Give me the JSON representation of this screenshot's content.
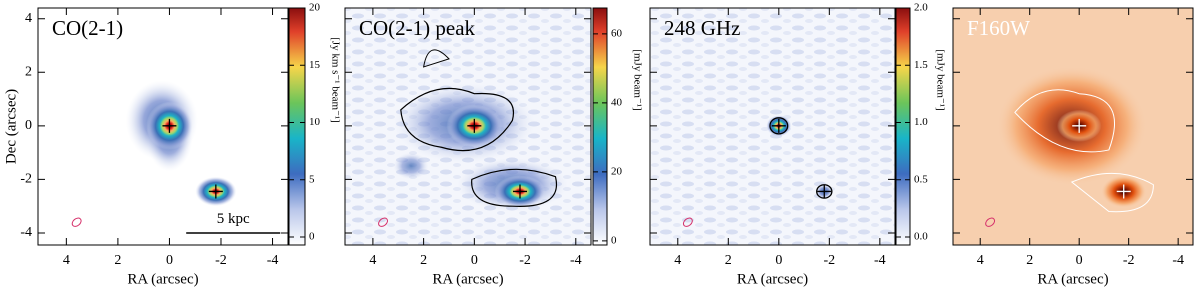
{
  "chart_data": [
    {
      "type": "image",
      "title": "CO(2-1)",
      "xlabel": "RA (arcsec)",
      "ylabel": "Dec (arcsec)",
      "xlim": [
        5.1,
        -4.6
      ],
      "xticks": [
        4,
        2,
        0,
        -2,
        -4
      ],
      "ylim": [
        -4.45,
        4.4
      ],
      "yticks": [
        -4,
        -2,
        0,
        2,
        4
      ],
      "x": [
        0,
        -1.8
      ],
      "y": [
        0,
        -2.45
      ],
      "marker_color": "#000000",
      "scalebar": "5 kpc",
      "colorbar": {
        "label": "[Jy km s⁻¹ beam⁻¹]",
        "lim": [
          -0.7,
          20
        ],
        "ticks": [
          0,
          5,
          10,
          15,
          20
        ]
      }
    },
    {
      "type": "image",
      "title": "CO(2-1) peak",
      "xlabel": "RA (arcsec)",
      "xlim": [
        5.1,
        -4.6
      ],
      "xticks": [
        4,
        2,
        0,
        -2,
        -4
      ],
      "ylim": [
        -4.45,
        4.4
      ],
      "yticks": [
        -4,
        -2,
        0,
        2,
        4
      ],
      "x": [
        0,
        -1.8
      ],
      "y": [
        0,
        -2.45
      ],
      "marker_color": "#000000",
      "colorbar": {
        "label": "[mJy beam⁻¹]",
        "lim": [
          -1.2,
          67.5
        ],
        "ticks": [
          0,
          20,
          40,
          60
        ]
      }
    },
    {
      "type": "image",
      "title": "248 GHz",
      "xlabel": "RA (arcsec)",
      "xlim": [
        5.1,
        -4.6
      ],
      "xticks": [
        4,
        2,
        0,
        -2,
        -4
      ],
      "ylim": [
        -4.45,
        4.4
      ],
      "yticks": [
        -4,
        -2,
        0,
        2,
        4
      ],
      "x": [
        0,
        -1.8
      ],
      "y": [
        0,
        -2.45
      ],
      "marker_color": "#000000",
      "colorbar": {
        "label": "[mJy beam⁻¹]",
        "lim": [
          -0.07,
          2.0
        ],
        "ticks": [
          {
            "value": 0,
            "label": "0.0"
          },
          0.5,
          {
            "value": 1,
            "label": "1.0"
          },
          1.5,
          {
            "value": 2,
            "label": "2.0"
          }
        ]
      }
    },
    {
      "type": "image",
      "title": "F160W",
      "xlabel": "RA (arcsec)",
      "xlim": [
        5.1,
        -4.6
      ],
      "xticks": [
        4,
        2,
        0,
        -2,
        -4
      ],
      "ylim": [
        -4.45,
        4.4
      ],
      "yticks": [
        -4,
        -2,
        0,
        2,
        4
      ],
      "x": [
        0,
        -1.8
      ],
      "y": [
        0,
        -2.45
      ],
      "marker_color": "#ffffff"
    }
  ]
}
